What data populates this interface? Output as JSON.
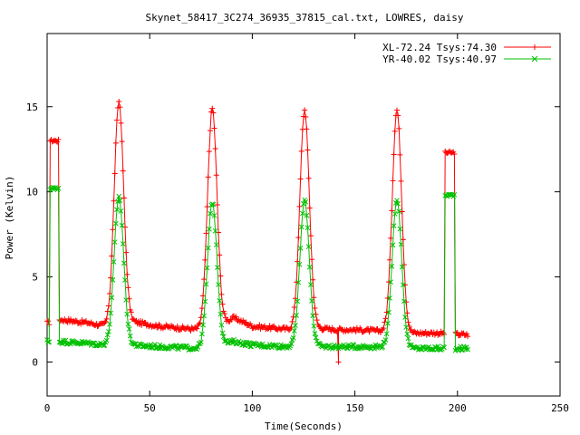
{
  "chart_data": {
    "type": "line",
    "title": "Skynet_58417_3C274_36935_37815_cal.txt, LOWRES, daisy",
    "xlabel": "Time(Seconds)",
    "ylabel": "Power (Kelvin)",
    "xlim": [
      0,
      250
    ],
    "ylim": [
      -2,
      19.3
    ],
    "x_ticks": [
      0,
      50,
      100,
      150,
      200,
      250
    ],
    "y_ticks": [
      0,
      5,
      10,
      15
    ],
    "grid": false,
    "legend_position": "top-right",
    "series": [
      {
        "name": "XL-72.24 Tsys:74.30",
        "color": "#ff0000",
        "marker": "plus",
        "base_level": [
          [
            0,
            2.3
          ],
          [
            1.5,
            2.3
          ],
          [
            6,
            2.5
          ],
          [
            20,
            2.3
          ],
          [
            29,
            2.1
          ],
          [
            40,
            2.4
          ],
          [
            55,
            2.1
          ],
          [
            75,
            1.9
          ],
          [
            85,
            2.2
          ],
          [
            91,
            2.6
          ],
          [
            100,
            2.1
          ],
          [
            120,
            1.9
          ],
          [
            130,
            2.0
          ],
          [
            142,
            1.9
          ],
          [
            150,
            1.9
          ],
          [
            165,
            1.8
          ],
          [
            176,
            1.7
          ],
          [
            190,
            1.7
          ],
          [
            205,
            1.6
          ]
        ],
        "peaks": [
          {
            "x": 35.0,
            "peak": 15.3,
            "width": 2.3
          },
          {
            "x": 80.5,
            "peak": 14.9,
            "width": 2.3
          },
          {
            "x": 125.5,
            "peak": 14.8,
            "width": 2.3
          },
          {
            "x": 170.5,
            "peak": 14.8,
            "width": 2.3
          }
        ],
        "plateaus": [
          {
            "x_start": 1.5,
            "x_end": 5.8,
            "level": 13.0
          },
          {
            "x_start": 193.8,
            "x_end": 198.8,
            "level": 12.3
          }
        ],
        "outliers": [
          [
            142,
            0.0
          ]
        ]
      },
      {
        "name": "YR-40.02 Tsys:40.97",
        "color": "#00c000",
        "marker": "cross",
        "base_level": [
          [
            0,
            1.2
          ],
          [
            1.5,
            1.2
          ],
          [
            6,
            1.2
          ],
          [
            20,
            1.1
          ],
          [
            29,
            1.0
          ],
          [
            40,
            1.0
          ],
          [
            55,
            0.9
          ],
          [
            75,
            0.8
          ],
          [
            85,
            1.0
          ],
          [
            91,
            1.2
          ],
          [
            100,
            1.0
          ],
          [
            120,
            0.9
          ],
          [
            130,
            0.9
          ],
          [
            142,
            0.9
          ],
          [
            150,
            0.9
          ],
          [
            165,
            0.9
          ],
          [
            176,
            0.8
          ],
          [
            190,
            0.8
          ],
          [
            205,
            0.8
          ]
        ],
        "peaks": [
          {
            "x": 35.0,
            "peak": 9.7,
            "width": 2.3
          },
          {
            "x": 80.5,
            "peak": 9.4,
            "width": 2.3
          },
          {
            "x": 125.5,
            "peak": 9.5,
            "width": 2.3
          },
          {
            "x": 170.5,
            "peak": 9.6,
            "width": 2.3
          }
        ],
        "plateaus": [
          {
            "x_start": 1.5,
            "x_end": 5.8,
            "level": 10.2
          },
          {
            "x_start": 193.8,
            "x_end": 198.8,
            "level": 9.8
          }
        ],
        "outliers": []
      }
    ]
  }
}
